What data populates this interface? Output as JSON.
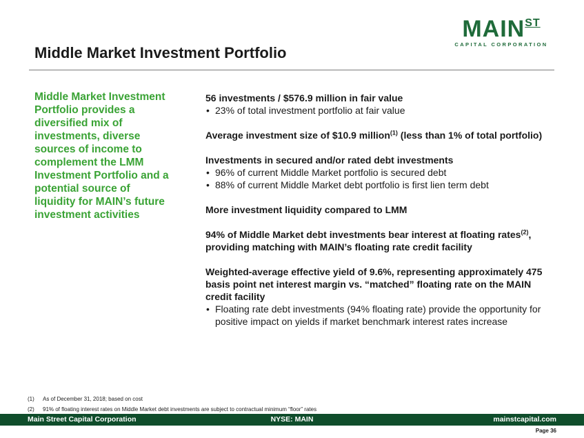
{
  "logo": {
    "main": "MAIN",
    "superscript": "ST",
    "sub": "CAPITAL CORPORATION"
  },
  "title": "Middle Market Investment Portfolio",
  "sidebar_text": "Middle Market Investment Portfolio provides a diversified mix of investments, diverse sources of income to complement the LMM Investment Portfolio and a potential source of liquidity for MAIN’s future investment activities",
  "sections": [
    {
      "heading": "56 investments / $576.9 million in fair value",
      "bullets": [
        "23% of total investment portfolio at fair value"
      ]
    },
    {
      "heading_a": "Average investment size of $10.9 million",
      "heading_sup": "(1)",
      "heading_b": " (less than 1% of total portfolio)"
    },
    {
      "heading": "Investments in secured and/or rated debt investments",
      "bullets": [
        "96% of current Middle Market portfolio is secured debt",
        "88% of current Middle Market debt portfolio is first lien term debt"
      ]
    },
    {
      "heading": "More investment liquidity compared to LMM"
    },
    {
      "heading_a": "94% of Middle Market debt investments bear interest at floating rates",
      "heading_sup": "(2)",
      "heading_b": ", providing matching with MAIN’s floating rate credit facility"
    },
    {
      "heading": "Weighted-average effective yield of 9.6%, representing approximately 475 basis point net interest margin vs. “matched” floating rate on the MAIN credit facility",
      "bullets": [
        "Floating rate debt investments (94% floating rate) provide the opportunity for positive impact on yields if market benchmark interest rates increase"
      ]
    }
  ],
  "footnotes": [
    {
      "num": "(1)",
      "text": "As of December 31, 2018; based on cost"
    },
    {
      "num": "(2)",
      "text": "91% of floating interest rates on Middle Market debt investments are subject to contractual minimum “floor” rates"
    }
  ],
  "footer": {
    "left": "Main Street Capital Corporation",
    "middle": "NYSE: MAIN",
    "right": "mainstcapital.com"
  },
  "page": "Page  36",
  "colors": {
    "brand_green": "#1f6b3a",
    "accent_green": "#3aa335",
    "footer_bg": "#0f4d2b"
  }
}
